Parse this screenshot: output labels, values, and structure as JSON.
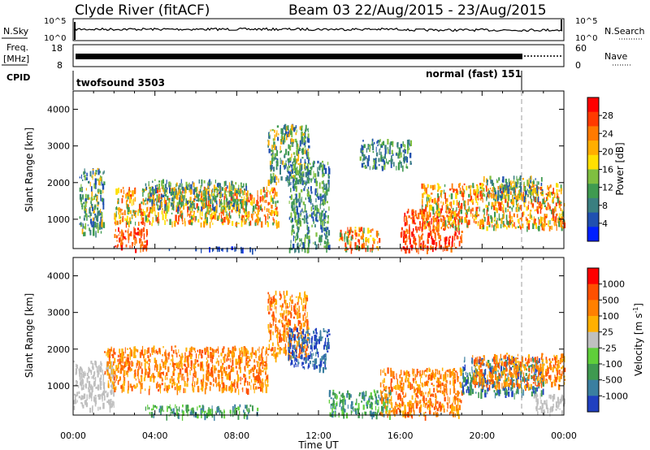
{
  "header": {
    "station": "Clyde River (fitACF)",
    "beam_info": "Beam 03 22/Aug/2015 - 23/Aug/2015"
  },
  "top_panels": {
    "nsky_label": "N.Sky",
    "nsky_ticks": [
      "10^5",
      "10^0"
    ],
    "nsearch_label": "N.Search",
    "nsearch_ticks": [
      "10^5",
      "10^0"
    ],
    "freq_label": "Freq.",
    "freq_unit": "[MHz]",
    "freq_ticks": [
      "18",
      "8"
    ],
    "nave_label": "Nave",
    "nave_ticks": [
      "60",
      "0"
    ],
    "cpid_label": "CPID",
    "cpid_modes": [
      "twofsound 3503",
      "normal (fast) 151"
    ]
  },
  "chart_data": [
    {
      "type": "heatmap",
      "name": "power",
      "ylabel": "Slant Range [km]",
      "xlabel": "",
      "ylim": [
        200,
        4500
      ],
      "yticks": [
        "1000",
        "2000",
        "3000",
        "4000"
      ],
      "xlim_hours": [
        0,
        24
      ],
      "colorbar_label": "Power [dB]",
      "colorbar_ticks": [
        "28",
        "24",
        "20",
        "16",
        "12",
        "8",
        "4"
      ],
      "colors": [
        "#0020ff",
        "#2050b0",
        "#3a7f80",
        "#3f9a50",
        "#7fbf40",
        "#ffe000",
        "#ffae00",
        "#ff7a00",
        "#ff3a00",
        "#ff0000"
      ]
    },
    {
      "type": "heatmap",
      "name": "velocity",
      "ylabel": "Slant Range [km]",
      "xlabel": "Time UT",
      "ylim": [
        200,
        4500
      ],
      "yticks": [
        "1000",
        "2000",
        "3000",
        "4000"
      ],
      "xticks": [
        "00:00",
        "04:00",
        "08:00",
        "12:00",
        "16:00",
        "20:00",
        "00:00"
      ],
      "xlim_hours": [
        0,
        24
      ],
      "colorbar_label": "Velocity [m s",
      "colorbar_label_exp": "-1",
      "colorbar_ticks": [
        "1000",
        "500",
        "100",
        "25",
        "-25",
        "-100",
        "-500",
        "-1000"
      ],
      "colors": [
        "#2040c0",
        "#3a7fa0",
        "#3f9a50",
        "#5fcf3a",
        "#c0c0c0",
        "#ffb000",
        "#ff8000",
        "#ff5000",
        "#ff0000"
      ]
    }
  ]
}
